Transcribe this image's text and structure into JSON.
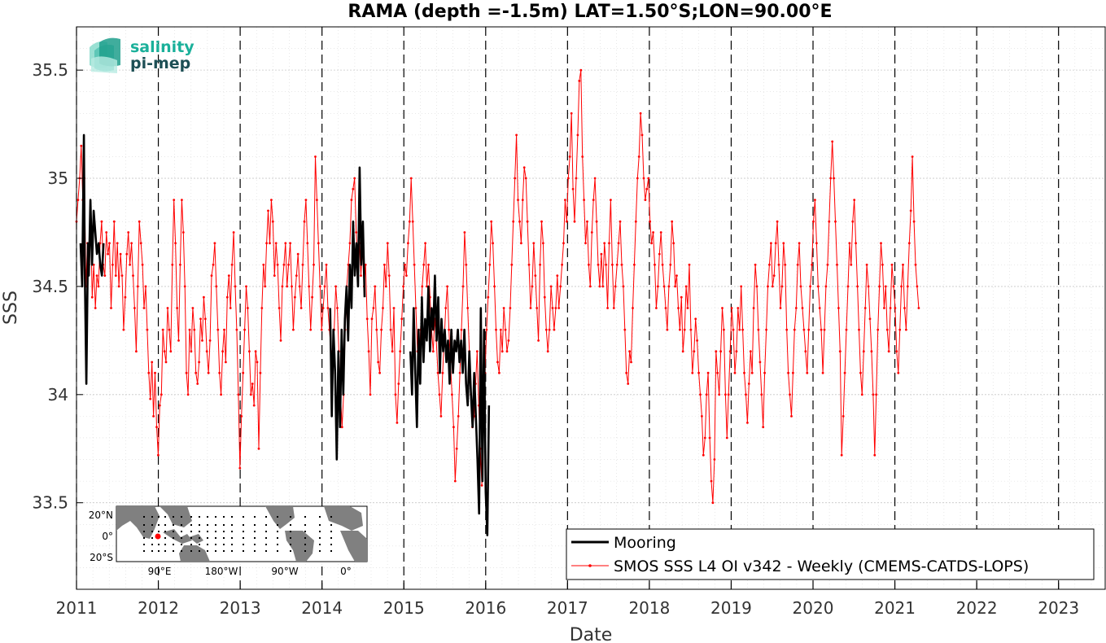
{
  "chart_data": {
    "type": "line",
    "title": "RAMA (depth =-1.5m) LAT=1.50°S;LON=90.00°E",
    "xlabel": "Date",
    "ylabel": "SSS",
    "xlim": [
      2011.0,
      2023.57
    ],
    "ylim": [
      33.1,
      35.7
    ],
    "x_ticks": [
      "2011",
      "2012",
      "2013",
      "2014",
      "2015",
      "2016",
      "2017",
      "2018",
      "2019",
      "2020",
      "2021",
      "2022",
      "2023"
    ],
    "y_ticks": [
      "33.5",
      "34",
      "34.5",
      "35",
      "35.5"
    ],
    "grid": true,
    "legend_position": "bottom-right",
    "series": [
      {
        "name": "Mooring",
        "color": "#000000",
        "segments": [
          {
            "x": [
              2011.05,
              2011.07,
              2011.09,
              2011.1,
              2011.12,
              2011.14,
              2011.15,
              2011.17,
              2011.19,
              2011.21,
              2011.23,
              2011.25,
              2011.27,
              2011.29,
              2011.31,
              2011.33
            ],
            "y": [
              34.7,
              34.5,
              35.2,
              34.6,
              34.05,
              34.7,
              34.55,
              34.9,
              34.6,
              34.85,
              34.75,
              34.65,
              34.7,
              34.6,
              34.55,
              34.7
            ]
          },
          {
            "x": [
              2014.1,
              2014.12,
              2014.14,
              2014.16,
              2014.18,
              2014.2,
              2014.22,
              2014.24,
              2014.26,
              2014.28,
              2014.3,
              2014.32,
              2014.34,
              2014.36,
              2014.38,
              2014.4,
              2014.42,
              2014.44,
              2014.46,
              2014.48,
              2014.5,
              2014.52
            ],
            "y": [
              34.4,
              33.9,
              34.3,
              34.1,
              33.7,
              34.2,
              33.85,
              34.3,
              34.0,
              34.35,
              34.5,
              34.25,
              34.6,
              34.4,
              34.8,
              34.55,
              34.7,
              34.5,
              35.05,
              34.6,
              34.8,
              34.45
            ]
          },
          {
            "x": [
              2015.08,
              2015.1,
              2015.12,
              2015.14,
              2015.16,
              2015.18,
              2015.2,
              2015.22,
              2015.24,
              2015.26,
              2015.28,
              2015.3,
              2015.32,
              2015.34,
              2015.36,
              2015.38,
              2015.4,
              2015.42,
              2015.44,
              2015.46,
              2015.48,
              2015.5,
              2015.52,
              2015.54,
              2015.56,
              2015.58,
              2015.6,
              2015.62,
              2015.64,
              2015.66,
              2015.68,
              2015.7,
              2015.72,
              2015.74,
              2015.76,
              2015.78,
              2015.8,
              2015.82,
              2015.84,
              2015.86,
              2015.88,
              2015.9,
              2015.92,
              2015.94,
              2015.96,
              2015.98,
              2016.0,
              2016.02,
              2016.04
            ],
            "y": [
              34.2,
              34.0,
              34.4,
              34.1,
              33.85,
              34.3,
              34.05,
              34.45,
              34.15,
              34.35,
              34.25,
              34.5,
              34.2,
              34.4,
              34.3,
              34.55,
              34.25,
              34.45,
              34.1,
              34.35,
              34.2,
              34.3,
              34.15,
              34.25,
              34.05,
              34.3,
              34.1,
              34.25,
              34.2,
              34.3,
              34.15,
              34.25,
              34.1,
              34.3,
              34.05,
              33.95,
              34.2,
              34.0,
              33.85,
              34.1,
              33.9,
              33.7,
              33.45,
              34.4,
              33.6,
              34.3,
              33.55,
              33.35,
              33.95
            ]
          }
        ]
      },
      {
        "name": "SMOS SSS L4 OI v342 - Weekly (CMEMS-CATDS-LOPS)",
        "color": "#ff0000",
        "x_start": 2011.0,
        "x_step": 0.0192,
        "values": [
          34.8,
          34.9,
          35.0,
          35.15,
          34.9,
          35.0,
          34.5,
          34.7,
          34.6,
          34.8,
          34.45,
          34.6,
          34.4,
          34.55,
          34.5,
          34.7,
          34.8,
          34.6,
          34.55,
          34.75,
          34.65,
          34.7,
          34.4,
          34.6,
          34.8,
          34.55,
          34.7,
          34.5,
          34.65,
          34.55,
          34.3,
          34.45,
          34.65,
          34.75,
          34.6,
          34.7,
          34.55,
          34.4,
          34.2,
          34.5,
          34.8,
          34.7,
          34.6,
          34.4,
          34.5,
          34.3,
          34.1,
          33.98,
          34.15,
          33.9,
          34.1,
          33.85,
          33.72,
          33.95,
          34.0,
          34.3,
          34.2,
          34.15,
          34.4,
          34.3,
          34.2,
          34.6,
          34.9,
          34.7,
          34.4,
          34.25,
          34.6,
          34.9,
          34.75,
          34.5,
          34.1,
          34.0,
          34.3,
          34.2,
          34.4,
          34.3,
          34.1,
          34.05,
          34.15,
          34.35,
          34.25,
          34.45,
          34.35,
          34.2,
          34.1,
          34.25,
          34.55,
          34.6,
          34.7,
          34.5,
          34.3,
          34.1,
          34.0,
          34.2,
          34.3,
          34.15,
          34.45,
          34.55,
          34.4,
          34.6,
          34.75,
          34.5,
          34.3,
          34.0,
          33.66,
          33.9,
          34.1,
          34.3,
          34.5,
          34.4,
          34.2,
          34.0,
          34.05,
          33.95,
          34.2,
          34.15,
          33.75,
          34.1,
          34.4,
          34.6,
          34.5,
          34.7,
          34.85,
          34.7,
          34.9,
          34.8,
          34.55,
          34.7,
          34.6,
          34.4,
          34.25,
          34.5,
          34.6,
          34.7,
          34.5,
          34.6,
          34.7,
          34.5,
          34.3,
          34.45,
          34.55,
          34.65,
          34.5,
          34.4,
          34.6,
          34.8,
          34.9,
          34.7,
          34.5,
          34.3,
          34.45,
          34.6,
          35.1,
          34.9,
          34.7,
          34.5,
          34.3,
          34.4,
          34.5,
          34.6,
          34.4,
          34.3,
          34.2,
          34.1,
          34.3,
          34.5,
          34.4,
          34.2,
          34.0,
          33.85,
          34.0,
          34.3,
          34.5,
          34.6,
          34.7,
          34.9,
          34.95,
          35.0,
          34.75,
          34.6,
          34.7,
          34.55,
          34.7,
          34.5,
          34.6,
          34.35,
          34.2,
          34.0,
          34.35,
          34.4,
          34.5,
          34.3,
          34.15,
          34.1,
          34.3,
          34.4,
          34.6,
          34.5,
          34.7,
          34.55,
          34.3,
          34.2,
          34.4,
          34.0,
          33.87,
          34.05,
          34.2,
          34.35,
          34.5,
          34.6,
          34.55,
          34.7,
          34.8,
          35.0,
          34.8,
          34.6,
          34.4,
          34.2,
          34.1,
          34.3,
          34.5,
          34.6,
          34.7,
          34.5,
          34.6,
          34.45,
          34.3,
          34.2,
          34.35,
          34.25,
          34.1,
          34.0,
          33.9,
          34.1,
          34.25,
          34.4,
          34.5,
          34.3,
          34.15,
          34.0,
          33.85,
          33.6,
          33.75,
          33.9,
          34.1,
          34.3,
          34.5,
          34.75,
          34.6,
          34.4,
          34.2,
          34.0,
          33.85,
          33.9,
          34.05,
          34.2,
          33.95,
          33.75,
          33.58,
          33.85,
          34.1,
          34.3,
          34.45,
          34.6,
          34.8,
          34.7,
          34.5,
          34.3,
          34.15,
          34.1,
          34.3,
          34.2,
          34.4,
          34.3,
          34.2,
          34.25,
          34.4,
          34.6,
          34.8,
          35.0,
          35.2,
          34.9,
          34.8,
          34.7,
          34.9,
          35.05,
          35.0,
          34.8,
          34.6,
          34.4,
          34.5,
          34.7,
          34.55,
          34.4,
          34.25,
          34.6,
          34.8,
          34.7,
          34.45,
          34.3,
          34.2,
          34.3,
          34.5,
          34.4,
          34.3,
          34.4,
          34.55,
          34.4,
          34.5,
          34.6,
          34.7,
          34.9,
          34.8,
          35.0,
          35.1,
          35.3,
          34.95,
          34.8,
          35.0,
          35.2,
          35.45,
          35.5,
          35.1,
          34.9,
          34.7,
          34.8,
          34.6,
          34.5,
          34.75,
          34.9,
          35.0,
          34.8,
          34.6,
          34.5,
          34.65,
          34.5,
          34.7,
          34.6,
          34.4,
          34.7,
          34.9,
          34.6,
          34.4,
          34.5,
          34.6,
          34.7,
          34.8,
          34.6,
          34.5,
          34.3,
          34.1,
          34.05,
          34.2,
          34.15,
          34.4,
          34.6,
          34.8,
          35.0,
          35.1,
          35.3,
          35.2,
          35.0,
          34.9,
          34.95,
          35.0,
          34.8,
          34.7,
          34.75,
          34.6,
          34.4,
          34.5,
          34.65,
          34.75,
          34.6,
          34.5,
          34.4,
          34.3,
          34.5,
          34.6,
          34.8,
          34.7,
          34.5,
          34.55,
          34.4,
          34.3,
          34.45,
          34.2,
          34.3,
          34.5,
          34.4,
          34.6,
          34.3,
          34.1,
          34.2,
          34.35,
          34.25,
          34.1,
          34.0,
          33.9,
          33.72,
          33.8,
          34.0,
          34.1,
          33.8,
          33.6,
          33.5,
          33.7,
          34.2,
          34.1,
          34.0,
          34.2,
          34.4,
          34.3,
          34.0,
          33.8,
          34.0,
          34.2,
          34.4,
          34.3,
          34.1,
          34.2,
          34.4,
          34.3,
          34.5,
          34.3,
          34.1,
          34.0,
          33.87,
          34.05,
          34.2,
          34.1,
          34.4,
          34.6,
          34.5,
          34.3,
          34.15,
          34.0,
          33.85,
          34.1,
          34.3,
          34.5,
          34.6,
          34.7,
          34.5,
          34.55,
          34.7,
          34.8,
          34.6,
          34.4,
          34.5,
          34.7,
          34.6,
          34.3,
          34.1,
          34.0,
          33.9,
          34.1,
          34.3,
          34.4,
          34.6,
          34.7,
          34.5,
          34.4,
          34.3,
          34.2,
          34.1,
          34.3,
          34.5,
          34.6,
          34.8,
          34.9,
          34.7,
          34.5,
          34.4,
          34.3,
          34.1,
          34.3,
          34.5,
          34.6,
          34.8,
          35.0,
          35.17,
          35.0,
          34.8,
          34.6,
          34.4,
          34.2,
          33.72,
          33.9,
          34.1,
          34.3,
          34.5,
          34.7,
          34.6,
          34.8,
          34.9,
          34.7,
          34.5,
          34.3,
          34.1,
          34.0,
          34.2,
          34.4,
          34.6,
          34.5,
          34.35,
          34.2,
          34.0,
          33.72,
          34.0,
          34.3,
          34.5,
          34.7,
          34.6,
          34.4,
          34.5,
          34.3,
          34.2,
          34.4,
          34.6,
          34.5,
          34.4,
          34.2,
          34.1,
          34.3,
          34.5,
          34.6,
          34.4,
          34.3,
          34.5,
          34.7,
          34.85,
          35.1,
          34.8,
          34.6,
          34.5,
          34.4
        ]
      }
    ],
    "inset_map": {
      "lat_ticks": [
        "20°N",
        "0°",
        "20°S"
      ],
      "lon_ticks": [
        "90°E",
        "180°W",
        "90°W",
        "0°"
      ],
      "land_color": "#808080",
      "ocean_color": "#ffffff",
      "marker_color": "#ff0000"
    },
    "logo": {
      "line1": "salinity",
      "line2": "pi-mep"
    }
  }
}
